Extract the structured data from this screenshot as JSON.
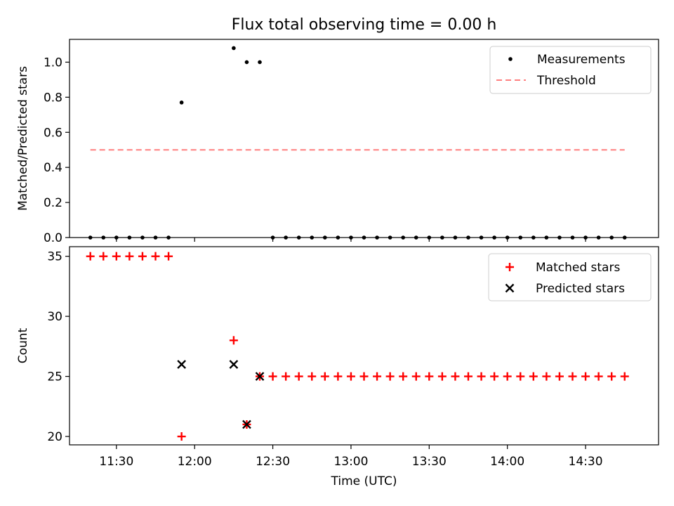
{
  "figure": {
    "title": "Flux total observing time = 0.00 h"
  },
  "colors": {
    "measurement": "#000000",
    "threshold": "#ff7f7f",
    "matched": "#ff0000",
    "predicted": "#000000"
  },
  "chart_data": [
    {
      "type": "scatter",
      "panel": "top",
      "title": "Flux total observing time = 0.00 h",
      "xlabel": "",
      "ylabel": "Matched/Predicted stars",
      "yticks": [
        "0.0",
        "0.2",
        "0.4",
        "0.6",
        "0.8",
        "1.0"
      ],
      "ylim": [
        0,
        1.13
      ],
      "legend_position": "top-right",
      "grid": false,
      "series": [
        {
          "name": "Measurements",
          "marker": "dot",
          "points": [
            [
              "11:20",
              0.0
            ],
            [
              "11:25",
              0.0
            ],
            [
              "11:30",
              0.0
            ],
            [
              "11:35",
              0.0
            ],
            [
              "11:40",
              0.0
            ],
            [
              "11:45",
              0.0
            ],
            [
              "11:50",
              0.0
            ],
            [
              "11:55",
              0.77
            ],
            [
              "12:15",
              1.08
            ],
            [
              "12:20",
              1.0
            ],
            [
              "12:25",
              1.0
            ],
            [
              "12:30",
              0.0
            ],
            [
              "12:35",
              0.0
            ],
            [
              "12:40",
              0.0
            ],
            [
              "12:45",
              0.0
            ],
            [
              "12:50",
              0.0
            ],
            [
              "12:55",
              0.0
            ],
            [
              "13:00",
              0.0
            ],
            [
              "13:05",
              0.0
            ],
            [
              "13:10",
              0.0
            ],
            [
              "13:15",
              0.0
            ],
            [
              "13:20",
              0.0
            ],
            [
              "13:25",
              0.0
            ],
            [
              "13:30",
              0.0
            ],
            [
              "13:35",
              0.0
            ],
            [
              "13:40",
              0.0
            ],
            [
              "13:45",
              0.0
            ],
            [
              "13:50",
              0.0
            ],
            [
              "13:55",
              0.0
            ],
            [
              "14:00",
              0.0
            ],
            [
              "14:05",
              0.0
            ],
            [
              "14:10",
              0.0
            ],
            [
              "14:15",
              0.0
            ],
            [
              "14:20",
              0.0
            ],
            [
              "14:25",
              0.0
            ],
            [
              "14:30",
              0.0
            ],
            [
              "14:35",
              0.0
            ],
            [
              "14:40",
              0.0
            ],
            [
              "14:45",
              0.0
            ]
          ]
        },
        {
          "name": "Threshold",
          "style": "dashed-line",
          "points": [
            [
              "11:20",
              0.5
            ],
            [
              "14:45",
              0.5
            ]
          ]
        }
      ]
    },
    {
      "type": "scatter",
      "panel": "bottom",
      "title": "",
      "xlabel": "Time (UTC)",
      "ylabel": "Count",
      "xticks": [
        "11:30",
        "12:00",
        "12:30",
        "13:00",
        "13:30",
        "14:00",
        "14:30"
      ],
      "xlim": [
        "11:12",
        "14:58"
      ],
      "yticks": [
        "20",
        "25",
        "30",
        "35"
      ],
      "ylim": [
        19.3,
        35.8
      ],
      "legend_position": "top-right",
      "grid": false,
      "series": [
        {
          "name": "Matched stars",
          "marker": "plus",
          "points": [
            [
              "11:20",
              35
            ],
            [
              "11:25",
              35
            ],
            [
              "11:30",
              35
            ],
            [
              "11:35",
              35
            ],
            [
              "11:40",
              35
            ],
            [
              "11:45",
              35
            ],
            [
              "11:50",
              35
            ],
            [
              "11:55",
              20
            ],
            [
              "12:15",
              28
            ],
            [
              "12:20",
              21
            ],
            [
              "12:25",
              25
            ],
            [
              "12:30",
              25
            ],
            [
              "12:35",
              25
            ],
            [
              "12:40",
              25
            ],
            [
              "12:45",
              25
            ],
            [
              "12:50",
              25
            ],
            [
              "12:55",
              25
            ],
            [
              "13:00",
              25
            ],
            [
              "13:05",
              25
            ],
            [
              "13:10",
              25
            ],
            [
              "13:15",
              25
            ],
            [
              "13:20",
              25
            ],
            [
              "13:25",
              25
            ],
            [
              "13:30",
              25
            ],
            [
              "13:35",
              25
            ],
            [
              "13:40",
              25
            ],
            [
              "13:45",
              25
            ],
            [
              "13:50",
              25
            ],
            [
              "13:55",
              25
            ],
            [
              "14:00",
              25
            ],
            [
              "14:05",
              25
            ],
            [
              "14:10",
              25
            ],
            [
              "14:15",
              25
            ],
            [
              "14:20",
              25
            ],
            [
              "14:25",
              25
            ],
            [
              "14:30",
              25
            ],
            [
              "14:35",
              25
            ],
            [
              "14:40",
              25
            ],
            [
              "14:45",
              25
            ]
          ]
        },
        {
          "name": "Predicted stars",
          "marker": "x",
          "points": [
            [
              "11:55",
              26
            ],
            [
              "12:15",
              26
            ],
            [
              "12:20",
              21
            ],
            [
              "12:25",
              25
            ]
          ]
        }
      ]
    }
  ]
}
